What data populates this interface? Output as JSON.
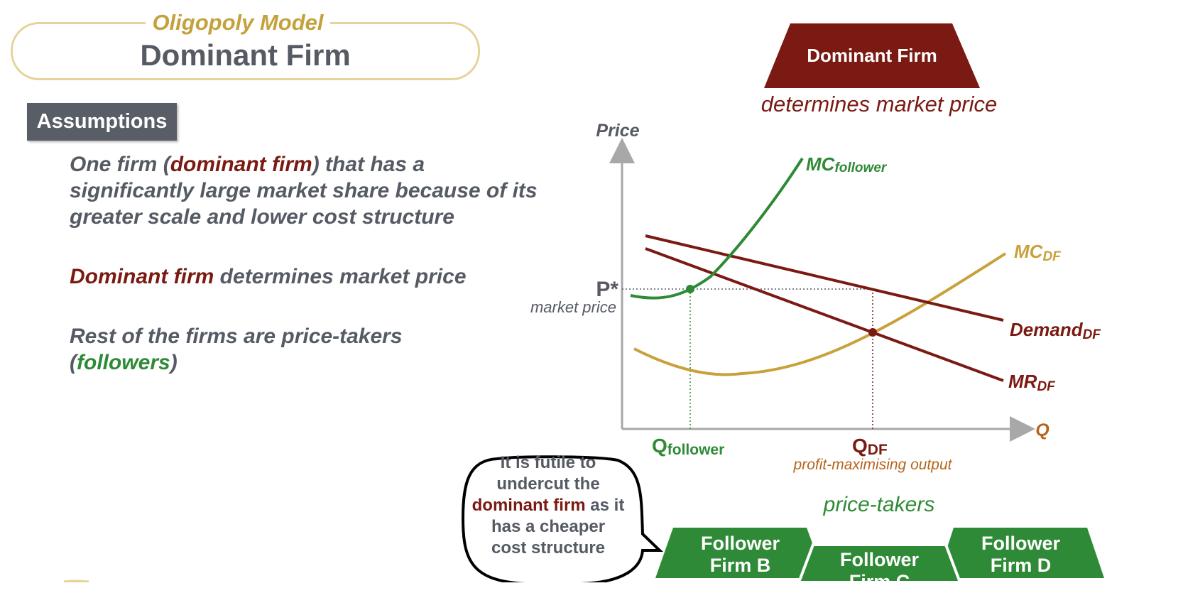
{
  "header": {
    "eyebrow": "Oligopoly Model",
    "title": "Dominant Firm"
  },
  "assumptions": {
    "label": "Assumptions",
    "p1": {
      "pre": "One firm (",
      "highlight": "dominant firm",
      "post": ") that has a significantly large market share because of its greater scale and lower cost structure"
    },
    "p2": {
      "highlight": "Dominant firm",
      "post": " determines market price"
    },
    "p3": {
      "pre": "Rest of the firms are price-takers (",
      "highlight": "followers",
      "post": ")"
    }
  },
  "dominant_badge": {
    "label": "Dominant Firm",
    "caption": "determines market price"
  },
  "diagram": {
    "y_axis": "Price",
    "x_axis": "Q",
    "p_star": "P*",
    "p_star_caption": "market price",
    "curves": {
      "mc_follower": {
        "main": "MC",
        "sub": "follower"
      },
      "mc_df": {
        "main": "MC",
        "sub": "DF"
      },
      "demand_df": {
        "main": "Demand",
        "sub": "DF"
      },
      "mr_df": {
        "main": "MR",
        "sub": "DF"
      }
    },
    "q_follower": {
      "main": "Q",
      "sub": "follower"
    },
    "q_df": {
      "main": "Q",
      "sub": "DF"
    },
    "q_df_caption": "profit-maximising output"
  },
  "callout": {
    "line1": "It is futile to",
    "line2": "undercut the",
    "highlight": "dominant firm",
    "line3_post": " as it",
    "line4": "has a cheaper",
    "line5": "cost structure"
  },
  "price_takers": "price-takers",
  "followers": [
    {
      "line1": "Follower",
      "line2": "Firm B"
    },
    {
      "line1": "Follower",
      "line2": "Firm C"
    },
    {
      "line1": "Follower",
      "line2": "Firm D"
    }
  ],
  "colors": {
    "dominant": "#7a1a12",
    "follower": "#2e8a36",
    "mc_df": "#c9a13b",
    "axis": "#a8a8a8",
    "text": "#555a63"
  }
}
